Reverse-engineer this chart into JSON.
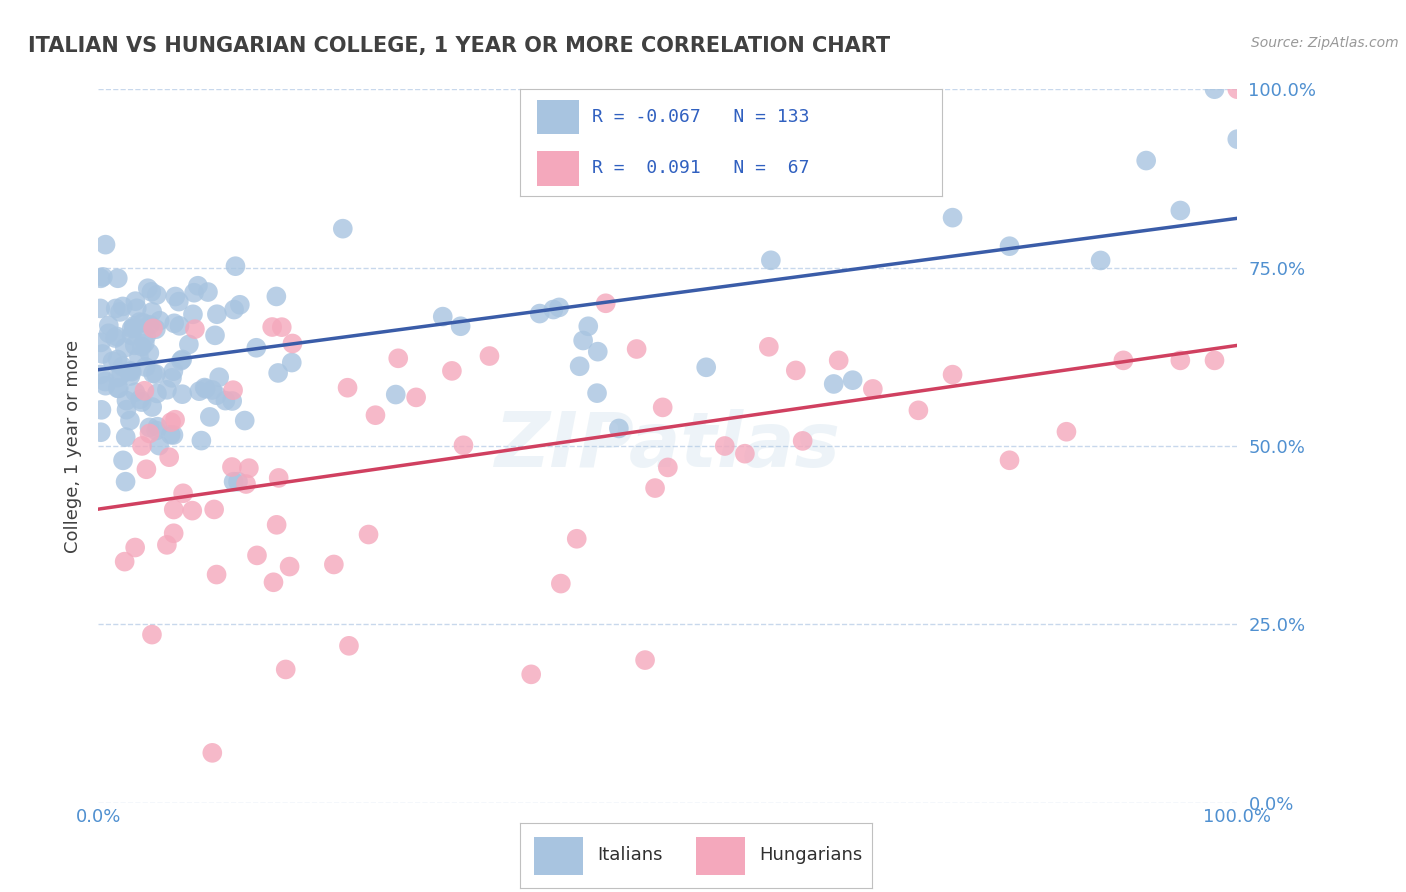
{
  "title": "ITALIAN VS HUNGARIAN COLLEGE, 1 YEAR OR MORE CORRELATION CHART",
  "source_text": "Source: ZipAtlas.com",
  "ylabel": "College, 1 year or more",
  "xlim": [
    0.0,
    1.0
  ],
  "ylim": [
    0.0,
    1.0
  ],
  "ytick_values": [
    0.0,
    0.25,
    0.5,
    0.75,
    1.0
  ],
  "italian_color": "#a8c4e0",
  "hungarian_color": "#f4a8bc",
  "italian_line_color": "#3a5ca8",
  "hungarian_line_color": "#d04060",
  "italian_R": -0.067,
  "italian_N": 133,
  "hungarian_R": 0.091,
  "hungarian_N": 67,
  "legend_label_italian": "Italians",
  "legend_label_hungarian": "Hungarians",
  "watermark": "ZIPatlas",
  "background_color": "#ffffff",
  "grid_color": "#c8d8ec",
  "title_color": "#404040",
  "axis_label_color": "#5090d0",
  "legend_text_color": "#303030",
  "legend_R_color": "#3060c0"
}
